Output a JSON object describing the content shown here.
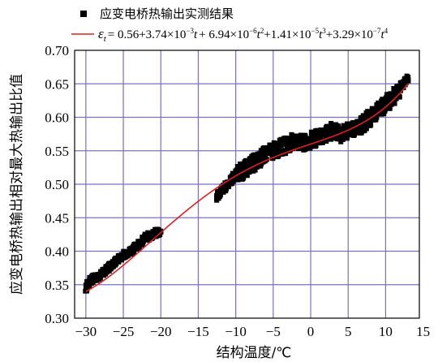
{
  "chart_data": {
    "type": "scatter",
    "xlabel": "结构温度/℃",
    "ylabel": "应变电桥热输出相对最大热输出比值",
    "xlim": [
      -31.5,
      14.5
    ],
    "ylim": [
      0.3,
      0.7
    ],
    "x_ticks": [
      "-30",
      "-25",
      "-20",
      "-15",
      "-10",
      "-5",
      "0",
      "5",
      "10",
      "15"
    ],
    "y_ticks": [
      "0.30",
      "0.35",
      "0.40",
      "0.45",
      "0.50",
      "0.55",
      "0.60",
      "0.65",
      "0.70"
    ],
    "grid": true,
    "legend_placement": "top-left",
    "series": [
      {
        "name": "应变电桥热输出实测结果",
        "marker": "square",
        "color": "#000000",
        "segments": [
          {
            "x_range": [
              -30,
              -20
            ],
            "points": [
              [
                -30,
                0.345
              ],
              [
                -29.5,
                0.355
              ],
              [
                -29,
                0.36
              ],
              [
                -28,
                0.365
              ],
              [
                -27,
                0.375
              ],
              [
                -26,
                0.385
              ],
              [
                -25,
                0.395
              ],
              [
                -24,
                0.4
              ],
              [
                -23,
                0.41
              ],
              [
                -22,
                0.42
              ],
              [
                -21,
                0.425
              ],
              [
                -20,
                0.43
              ]
            ]
          },
          {
            "x_range": [
              -12.5,
              13
            ],
            "points": [
              [
                -12.5,
                0.48
              ],
              [
                -12,
                0.49
              ],
              [
                -11,
                0.5
              ],
              [
                -10,
                0.515
              ],
              [
                -9,
                0.52
              ],
              [
                -8,
                0.53
              ],
              [
                -7,
                0.535
              ],
              [
                -6,
                0.545
              ],
              [
                -5,
                0.55
              ],
              [
                -4,
                0.555
              ],
              [
                -3,
                0.56
              ],
              [
                -2,
                0.565
              ],
              [
                -1,
                0.56
              ],
              [
                0,
                0.565
              ],
              [
                1,
                0.57
              ],
              [
                2,
                0.575
              ],
              [
                3,
                0.58
              ],
              [
                4,
                0.575
              ],
              [
                5,
                0.58
              ],
              [
                6,
                0.585
              ],
              [
                7,
                0.59
              ],
              [
                8,
                0.6
              ],
              [
                9,
                0.61
              ],
              [
                10,
                0.62
              ],
              [
                11,
                0.63
              ],
              [
                12,
                0.645
              ],
              [
                13,
                0.66
              ]
            ]
          }
        ]
      },
      {
        "name": "εt = 0.56+3.74×10⁻³t+6.94×10⁻⁶t²+1.41×10⁻⁵t³+3.29×10⁻⁷t⁴",
        "type": "line",
        "color": "#e02020",
        "coefficients": [
          0.56,
          0.00374,
          6.94e-06,
          1.41e-05,
          3.29e-07
        ],
        "x_range": [
          -30,
          13
        ]
      }
    ]
  },
  "legend": {
    "scatter_label": "应变电桥热输出实测结果",
    "fit_prefix": "ε",
    "fit_sub": "t",
    "fit_equals": "= 0.56+3.74×10",
    "exp1": "−3",
    "t1": "t",
    "p2": "+ 6.94×10",
    "exp2": "−6",
    "t2": "t",
    "sq2": "2",
    "p3": "+1.41×10",
    "exp3": "−5",
    "t3": "t",
    "sq3": "3",
    "p4": "+3.29×10",
    "exp4": "−7",
    "t4": "t",
    "sq4": "4"
  }
}
